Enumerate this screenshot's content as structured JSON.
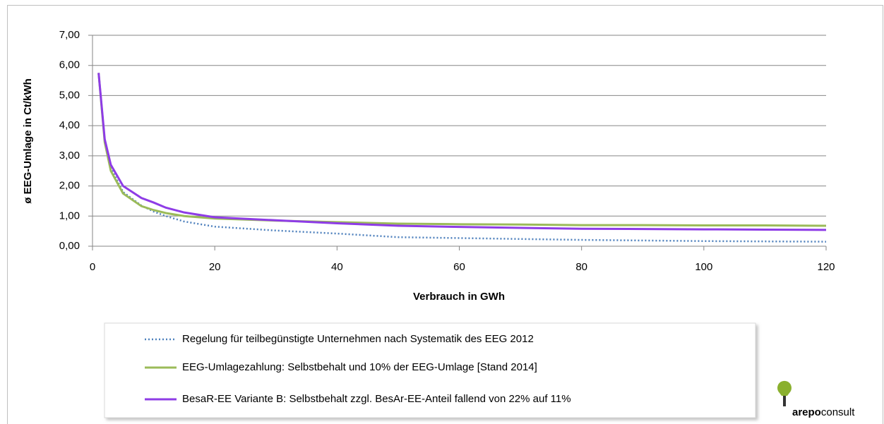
{
  "chart_data": {
    "type": "line",
    "y_label": "ø EEG-Umlage in Ct/kWh",
    "x_label": "Verbrauch in GWh",
    "x": [
      1,
      2,
      3,
      5,
      8,
      10,
      12,
      15,
      20,
      30,
      40,
      50,
      60,
      70,
      80,
      90,
      100,
      110,
      120
    ],
    "series": [
      {
        "name": "Regelung für teilbegünstigte Unternehmen nach Systematik des EEG 2012",
        "color": "#4f81bd",
        "dash": "dotted",
        "values": [
          5.75,
          3.5,
          2.6,
          1.8,
          1.35,
          1.15,
          1.0,
          0.82,
          0.65,
          0.52,
          0.42,
          0.3,
          0.27,
          0.24,
          0.21,
          0.19,
          0.17,
          0.16,
          0.15
        ]
      },
      {
        "name": "EEG-Umlagezahlung: Selbstbehalt und 10% der EEG-Umlage [Stand 2014]",
        "color": "#9bbb59",
        "dash": "solid",
        "values": [
          5.75,
          3.45,
          2.5,
          1.75,
          1.33,
          1.2,
          1.1,
          1.0,
          0.92,
          0.85,
          0.8,
          0.75,
          0.73,
          0.72,
          0.7,
          0.7,
          0.69,
          0.69,
          0.68
        ]
      },
      {
        "name": "BesaR-EE Variante B: Selbstbehalt zzgl. BesAr-EE-Anteil fallend von 22% auf 11%",
        "color": "#8e3ce6",
        "dash": "solid",
        "values": [
          5.75,
          3.55,
          2.7,
          2.0,
          1.6,
          1.45,
          1.28,
          1.12,
          0.96,
          0.86,
          0.76,
          0.68,
          0.64,
          0.61,
          0.58,
          0.57,
          0.56,
          0.55,
          0.54
        ]
      }
    ],
    "xlim": [
      0,
      120
    ],
    "xticks": [
      0,
      20,
      40,
      60,
      80,
      100,
      120
    ],
    "ylim": [
      0,
      7
    ],
    "yticks": [
      {
        "value": 0,
        "label": "0,00"
      },
      {
        "value": 1,
        "label": "1,00"
      },
      {
        "value": 2,
        "label": "2,00"
      },
      {
        "value": 3,
        "label": "3,00"
      },
      {
        "value": 4,
        "label": "4,00"
      },
      {
        "value": 5,
        "label": "5,00"
      },
      {
        "value": 6,
        "label": "6,00"
      },
      {
        "value": 7,
        "label": "7,00"
      }
    ],
    "grid": true,
    "legend": "bottom",
    "logo_text": [
      "arepo",
      "consult"
    ]
  }
}
